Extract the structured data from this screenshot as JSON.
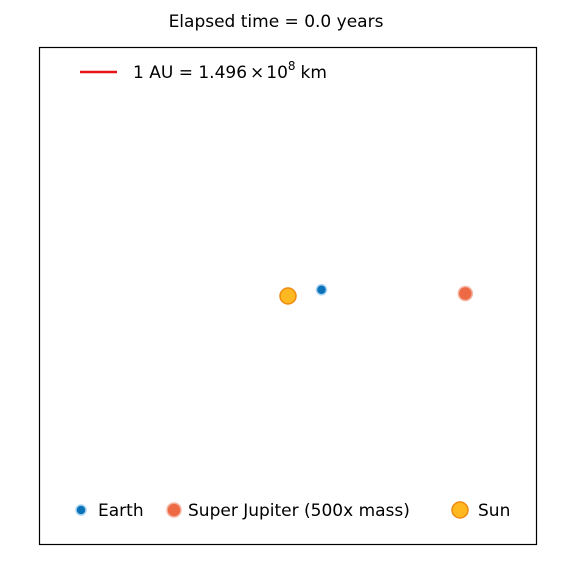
{
  "chart_data": {
    "type": "scatter",
    "title": "Elapsed time = 0.0 years",
    "xlabel": "",
    "ylabel": "",
    "grid": false,
    "axes_ticks": false,
    "xlim": [
      -2.0,
      2.0
    ],
    "ylim": [
      -2.0,
      2.0
    ],
    "scale_bar": {
      "label_prefix": "1 AU = 1.496",
      "label_times": "×",
      "label_base": "10",
      "label_exponent": "8",
      "label_unit": "km",
      "color": "#e8141c",
      "legend_position": "top-left"
    },
    "series": [
      {
        "name": "Earth",
        "x": 0.27,
        "y": 0.05,
        "color": "#0a72b8",
        "edge_color": "#a9d3f0"
      },
      {
        "name": "Super Jupiter (500x mass)",
        "x": 1.43,
        "y": 0.02,
        "color": "#ee6a45",
        "edge_color": "#f4b7a5"
      },
      {
        "name": "Sun",
        "x": 0.0,
        "y": 0.0,
        "color": "#ffb81f",
        "edge_color": "#ee8a12"
      }
    ],
    "legend_position": "bottom"
  }
}
